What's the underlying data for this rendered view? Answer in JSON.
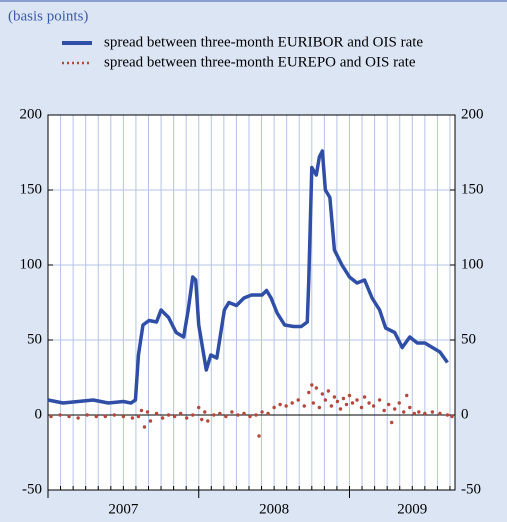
{
  "chart_data": {
    "type": "line",
    "subtitle": "(basis points)",
    "xlim": [
      2007,
      2009.7
    ],
    "x_labels": [
      2007,
      2008,
      2009
    ],
    "ylim": [
      -50,
      200
    ],
    "yticks": [
      -50,
      0,
      50,
      100,
      150,
      200
    ],
    "grid": true,
    "series": [
      {
        "name": "spread between three-month EURIBOR and OIS rate",
        "color": "#2f4ea6",
        "style": "line",
        "x": [
          2007.0,
          2007.1,
          2007.2,
          2007.3,
          2007.4,
          2007.5,
          2007.55,
          2007.58,
          2007.6,
          2007.63,
          2007.67,
          2007.72,
          2007.75,
          2007.8,
          2007.85,
          2007.9,
          2007.93,
          2007.96,
          2007.98,
          2008.0,
          2008.05,
          2008.08,
          2008.12,
          2008.17,
          2008.2,
          2008.25,
          2008.3,
          2008.35,
          2008.42,
          2008.45,
          2008.48,
          2008.52,
          2008.57,
          2008.63,
          2008.68,
          2008.72,
          2008.73,
          2008.75,
          2008.78,
          2008.8,
          2008.82,
          2008.84,
          2008.87,
          2008.9,
          2008.95,
          2009.0,
          2009.05,
          2009.1,
          2009.15,
          2009.2,
          2009.24,
          2009.3,
          2009.35,
          2009.4,
          2009.45,
          2009.5,
          2009.55,
          2009.6,
          2009.65
        ],
        "values": [
          10,
          8,
          9,
          10,
          8,
          9,
          8,
          10,
          40,
          60,
          63,
          62,
          70,
          65,
          55,
          52,
          70,
          92,
          90,
          60,
          30,
          40,
          38,
          70,
          75,
          73,
          78,
          80,
          80,
          83,
          78,
          68,
          60,
          59,
          59,
          62,
          90,
          165,
          160,
          172,
          176,
          150,
          145,
          110,
          100,
          92,
          88,
          90,
          78,
          70,
          58,
          55,
          45,
          52,
          48,
          48,
          45,
          42,
          35
        ]
      },
      {
        "name": "spread between three-month EUREPO and OIS rate",
        "color": "#b5473c",
        "style": "dots",
        "x": [
          2007.02,
          2007.08,
          2007.14,
          2007.2,
          2007.26,
          2007.32,
          2007.38,
          2007.44,
          2007.5,
          2007.56,
          2007.6,
          2007.62,
          2007.64,
          2007.66,
          2007.68,
          2007.72,
          2007.76,
          2007.8,
          2007.84,
          2007.88,
          2007.92,
          2007.96,
          2008.0,
          2008.02,
          2008.04,
          2008.06,
          2008.1,
          2008.14,
          2008.18,
          2008.22,
          2008.26,
          2008.3,
          2008.34,
          2008.38,
          2008.4,
          2008.42,
          2008.46,
          2008.5,
          2008.54,
          2008.58,
          2008.62,
          2008.66,
          2008.7,
          2008.73,
          2008.75,
          2008.76,
          2008.78,
          2008.8,
          2008.82,
          2008.84,
          2008.86,
          2008.88,
          2008.9,
          2008.92,
          2008.94,
          2008.96,
          2008.98,
          2009.0,
          2009.02,
          2009.05,
          2009.08,
          2009.1,
          2009.13,
          2009.16,
          2009.2,
          2009.23,
          2009.26,
          2009.28,
          2009.3,
          2009.33,
          2009.36,
          2009.38,
          2009.4,
          2009.43,
          2009.46,
          2009.5,
          2009.55,
          2009.6,
          2009.65,
          2009.68
        ],
        "values": [
          -1,
          0,
          -1,
          -2,
          0,
          -1,
          -1,
          0,
          -1,
          -2,
          -1,
          3,
          -8,
          2,
          -4,
          1,
          -2,
          0,
          -1,
          1,
          -2,
          0,
          5,
          -3,
          2,
          -4,
          0,
          1,
          -1,
          2,
          0,
          1,
          -1,
          0,
          -14,
          2,
          1,
          5,
          7,
          6,
          8,
          10,
          6,
          15,
          20,
          8,
          18,
          5,
          14,
          10,
          16,
          6,
          12,
          9,
          4,
          11,
          7,
          13,
          8,
          10,
          5,
          12,
          8,
          6,
          10,
          3,
          7,
          -5,
          4,
          8,
          2,
          13,
          5,
          1,
          2,
          1,
          2,
          1,
          0,
          -1
        ]
      }
    ]
  }
}
